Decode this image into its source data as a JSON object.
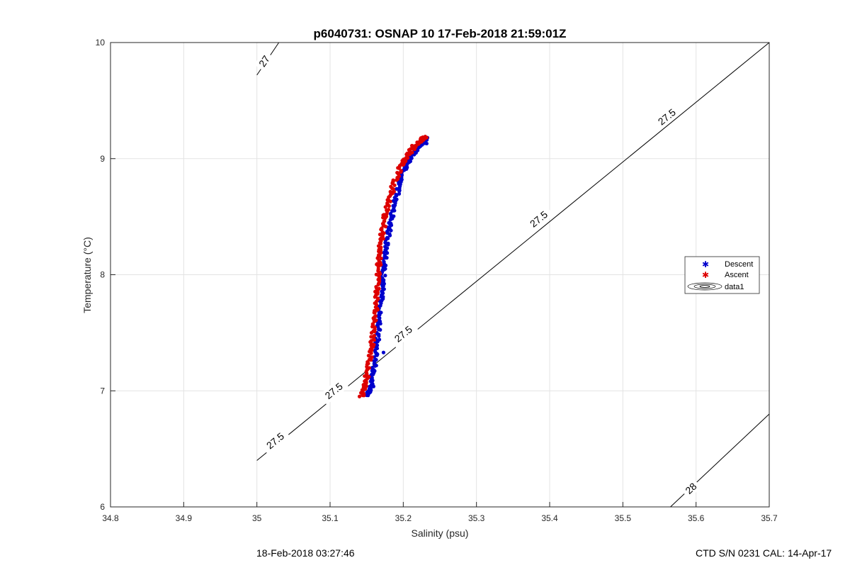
{
  "chart_data": {
    "type": "scatter",
    "title": "p6040731: OSNAP 10 17-Feb-2018 21:59:01Z",
    "xlabel": "Salinity (psu)",
    "ylabel": "Temperature (°C)",
    "xlim": [
      34.8,
      35.7
    ],
    "ylim": [
      6,
      10
    ],
    "x_ticks": [
      "34.8",
      "34.9",
      "35",
      "35.1",
      "35.2",
      "35.3",
      "35.4",
      "35.5",
      "35.6",
      "35.7"
    ],
    "y_ticks": [
      "6",
      "7",
      "8",
      "9",
      "10"
    ],
    "grid": true,
    "legend_position": "right",
    "legend": [
      "Descent",
      "Ascent",
      "data1"
    ],
    "series": [
      {
        "name": "Descent",
        "color": "#0000cc",
        "marker": "star",
        "profile_T": [
          6.96,
          7.05,
          7.2,
          7.35,
          7.5,
          7.65,
          7.8,
          7.95,
          8.1,
          8.25,
          8.4,
          8.55,
          8.7,
          8.85,
          8.95,
          9.05,
          9.13,
          9.18
        ],
        "profile_S": [
          35.152,
          35.157,
          35.16,
          35.163,
          35.166,
          35.168,
          35.17,
          35.172,
          35.174,
          35.177,
          35.181,
          35.186,
          35.192,
          35.198,
          35.205,
          35.214,
          35.226,
          35.233
        ],
        "outliers": [
          [
            35.173,
            7.33
          ],
          [
            35.198,
            8.82
          ],
          [
            35.232,
            9.13
          ]
        ]
      },
      {
        "name": "Ascent",
        "color": "#dd0000",
        "marker": "star",
        "profile_T": [
          6.95,
          7.05,
          7.15,
          7.3,
          7.45,
          7.6,
          7.75,
          7.9,
          8.05,
          8.2,
          8.35,
          8.5,
          8.65,
          8.8,
          8.92,
          9.02,
          9.1,
          9.16,
          9.19
        ],
        "profile_S": [
          35.143,
          35.147,
          35.151,
          35.155,
          35.158,
          35.161,
          35.163,
          35.165,
          35.166,
          35.168,
          35.171,
          35.175,
          35.181,
          35.188,
          35.196,
          35.205,
          35.214,
          35.224,
          35.23
        ],
        "outliers": []
      }
    ],
    "contours": [
      {
        "label": "27",
        "from": [
          35.0,
          9.72
        ],
        "to": [
          35.03,
          10.0
        ],
        "label_at": [
          35.01,
          9.84
        ]
      },
      {
        "label": "27.5",
        "from": [
          35.0,
          6.4
        ],
        "to": [
          35.7,
          10.0
        ],
        "label_at": [
          [
            35.025,
            6.57
          ],
          [
            35.105,
            7.0
          ],
          [
            35.2,
            7.49
          ],
          [
            35.385,
            8.48
          ],
          [
            35.56,
            9.36
          ]
        ]
      },
      {
        "label": "28",
        "from": [
          35.565,
          6.0
        ],
        "to": [
          35.7,
          6.8
        ],
        "label_at": [
          [
            35.593,
            6.16
          ]
        ]
      }
    ],
    "footer_left": "18-Feb-2018 03:27:46",
    "footer_right": "CTD S/N 0231  CAL: 14-Apr-17"
  }
}
